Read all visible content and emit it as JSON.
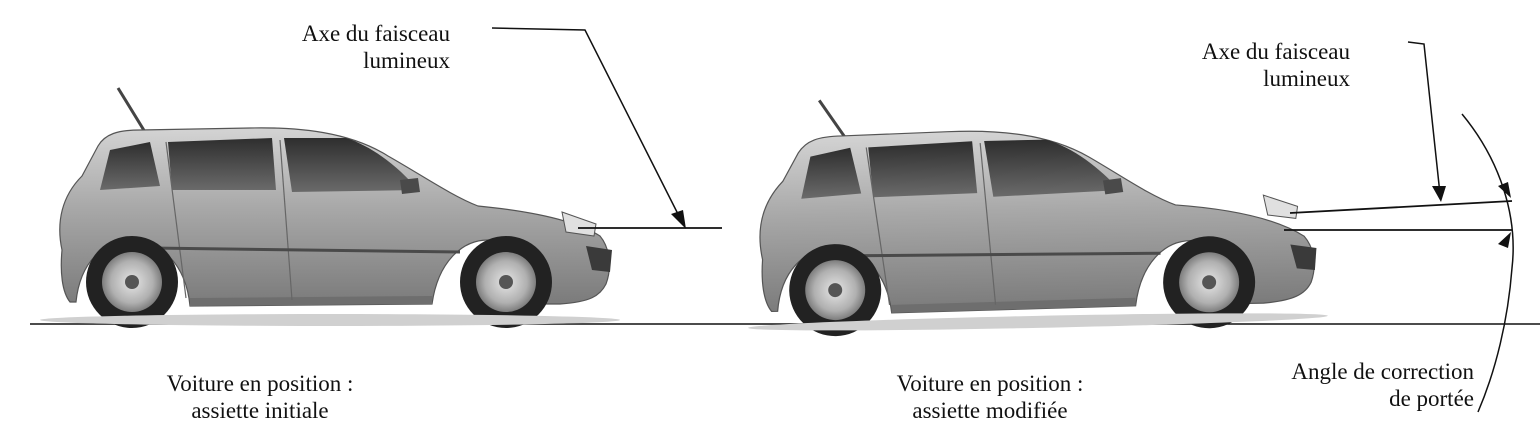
{
  "labels": {
    "beam_axis_left_line1": "Axe du faisceau",
    "beam_axis_left_line2": "lumineux",
    "beam_axis_right_line1": "Axe du faisceau",
    "beam_axis_right_line2": "lumineux",
    "car_initial_line1": "Voiture en position :",
    "car_initial_line2": "assiette initiale",
    "car_modified_line1": "Voiture en position :",
    "car_modified_line2": "assiette modifiée",
    "correction_angle_line1": "Angle de correction",
    "correction_angle_line2": "de portée"
  },
  "colors": {
    "line": "#111111",
    "car_body": "#a9a9a9",
    "car_dark": "#3a3a3a",
    "window": "#4a4a4a",
    "tire": "#222222",
    "rim": "#bdbdbd"
  }
}
